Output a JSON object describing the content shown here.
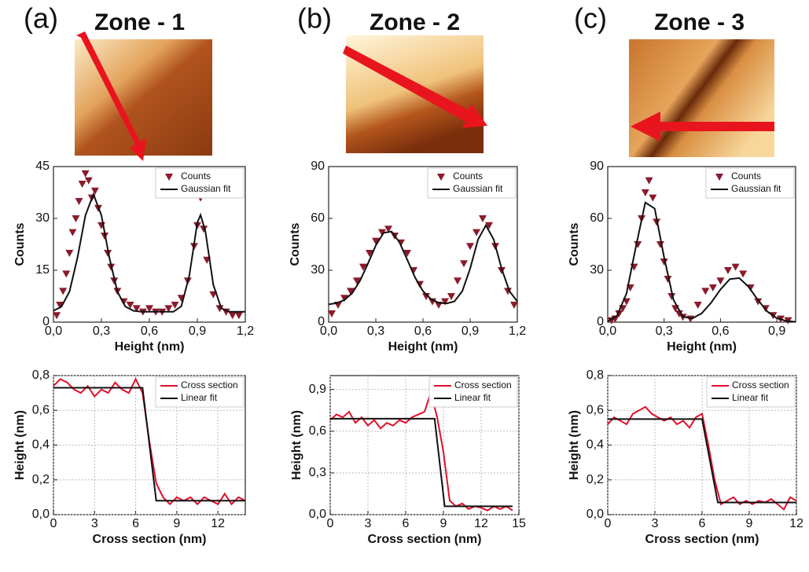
{
  "panels": [
    {
      "label": "(a)",
      "title": "Zone - 1"
    },
    {
      "label": "(b)",
      "title": "Zone - 2"
    },
    {
      "label": "(c)",
      "title": "Zone - 3"
    }
  ],
  "chart_data": [
    {
      "type": "scatter",
      "x_label": "Height (nm)",
      "y_label": "Counts",
      "xlim": [
        0,
        1.2
      ],
      "ylim": [
        0,
        45
      ],
      "xticks": [
        {
          "value": 0,
          "label": "0,0"
        },
        {
          "value": 0.3,
          "label": "0,3"
        },
        {
          "value": 0.6,
          "label": "0,6"
        },
        {
          "value": 0.9,
          "label": "0,9"
        },
        {
          "value": 1.2,
          "label": "1,2"
        }
      ],
      "yticks": [
        0,
        15,
        30,
        45
      ],
      "grid": false,
      "legend": "upper right",
      "series": [
        {
          "name": "Counts",
          "color": "#8b1a2b",
          "mode": "markers",
          "x": [
            0.02,
            0.04,
            0.06,
            0.08,
            0.1,
            0.12,
            0.14,
            0.16,
            0.18,
            0.2,
            0.22,
            0.24,
            0.26,
            0.28,
            0.3,
            0.32,
            0.34,
            0.36,
            0.38,
            0.4,
            0.44,
            0.48,
            0.52,
            0.56,
            0.6,
            0.64,
            0.68,
            0.72,
            0.76,
            0.8,
            0.84,
            0.88,
            0.9,
            0.92,
            0.94,
            0.96,
            1.0,
            1.04,
            1.08,
            1.12,
            1.16
          ],
          "values": [
            2,
            5,
            9,
            14,
            20,
            26,
            30,
            35,
            40,
            43,
            41,
            36,
            38,
            33,
            28,
            25,
            20,
            16,
            12,
            9,
            6,
            5,
            4,
            3,
            4,
            3,
            3,
            4,
            5,
            7,
            12,
            22,
            28,
            36,
            27,
            18,
            8,
            4,
            3,
            2,
            2
          ]
        },
        {
          "name": "Gaussian fit",
          "color": "#111111",
          "mode": "line",
          "x": [
            0,
            0.05,
            0.1,
            0.15,
            0.2,
            0.25,
            0.3,
            0.35,
            0.4,
            0.45,
            0.5,
            0.55,
            0.6,
            0.65,
            0.7,
            0.75,
            0.8,
            0.85,
            0.9,
            0.92,
            0.95,
            1.0,
            1.05,
            1.1,
            1.15,
            1.2
          ],
          "values": [
            3.3,
            4.5,
            8.8,
            18.6,
            30.9,
            37,
            30.9,
            18.6,
            8.8,
            4.5,
            3.3,
            3,
            3,
            3,
            3,
            3,
            4.6,
            13.5,
            28.8,
            31,
            26.4,
            10.8,
            4,
            3,
            3,
            3
          ]
        }
      ]
    },
    {
      "type": "scatter",
      "x_label": "Height (nm)",
      "y_label": "Counts",
      "xlim": [
        0,
        1.2
      ],
      "ylim": [
        0,
        90
      ],
      "xticks": [
        {
          "value": 0,
          "label": "0,0"
        },
        {
          "value": 0.3,
          "label": "0,3"
        },
        {
          "value": 0.6,
          "label": "0,6"
        },
        {
          "value": 0.9,
          "label": "0,9"
        },
        {
          "value": 1.2,
          "label": "1,2"
        }
      ],
      "yticks": [
        0,
        30,
        60,
        90
      ],
      "grid": false,
      "legend": "upper right",
      "series": [
        {
          "name": "Counts",
          "color": "#8b1a2b",
          "mode": "markers",
          "x": [
            0.02,
            0.06,
            0.1,
            0.14,
            0.18,
            0.22,
            0.26,
            0.3,
            0.34,
            0.38,
            0.42,
            0.46,
            0.5,
            0.54,
            0.58,
            0.62,
            0.66,
            0.7,
            0.74,
            0.78,
            0.82,
            0.86,
            0.9,
            0.94,
            0.98,
            1.02,
            1.06,
            1.1,
            1.14,
            1.18
          ],
          "values": [
            5,
            10,
            14,
            18,
            24,
            32,
            40,
            47,
            52,
            54,
            50,
            46,
            40,
            30,
            22,
            15,
            12,
            10,
            12,
            15,
            24,
            34,
            44,
            52,
            60,
            56,
            44,
            30,
            18,
            10
          ]
        },
        {
          "name": "Gaussian fit",
          "color": "#111111",
          "mode": "line",
          "x": [
            0,
            0.05,
            0.1,
            0.15,
            0.2,
            0.25,
            0.3,
            0.35,
            0.4,
            0.45,
            0.5,
            0.55,
            0.6,
            0.65,
            0.7,
            0.75,
            0.8,
            0.85,
            0.9,
            0.95,
            1.0,
            1.05,
            1.1,
            1.15,
            1.2
          ],
          "values": [
            10.3,
            11,
            12.8,
            16.8,
            24,
            33.9,
            44.4,
            51.7,
            52.4,
            46.3,
            36.1,
            25.8,
            18,
            13.4,
            11.2,
            10.8,
            12,
            17.9,
            31,
            47.8,
            56,
            47.8,
            31,
            17.9,
            12
          ]
        }
      ]
    },
    {
      "type": "scatter",
      "x_label": "Height (nm)",
      "y_label": "Counts",
      "xlim": [
        0,
        1.0
      ],
      "ylim": [
        0,
        90
      ],
      "xticks": [
        {
          "value": 0,
          "label": "0,0"
        },
        {
          "value": 0.3,
          "label": "0,3"
        },
        {
          "value": 0.6,
          "label": "0,6"
        },
        {
          "value": 0.9,
          "label": "0,9"
        }
      ],
      "yticks": [
        0,
        30,
        60,
        90
      ],
      "grid": false,
      "legend": "upper right",
      "series": [
        {
          "name": "Counts",
          "color": "#8b1a2b",
          "mode": "markers",
          "x": [
            0.02,
            0.04,
            0.06,
            0.08,
            0.1,
            0.12,
            0.14,
            0.16,
            0.18,
            0.2,
            0.22,
            0.24,
            0.26,
            0.28,
            0.3,
            0.32,
            0.34,
            0.36,
            0.38,
            0.4,
            0.44,
            0.48,
            0.52,
            0.56,
            0.6,
            0.64,
            0.68,
            0.72,
            0.76,
            0.8,
            0.84,
            0.88,
            0.92,
            0.96
          ],
          "values": [
            1,
            2,
            5,
            8,
            12,
            20,
            32,
            45,
            60,
            75,
            82,
            72,
            58,
            45,
            35,
            25,
            15,
            8,
            5,
            3,
            2,
            10,
            18,
            20,
            24,
            30,
            32,
            28,
            20,
            12,
            8,
            4,
            2,
            1
          ]
        },
        {
          "name": "Gaussian fit",
          "color": "#111111",
          "mode": "line",
          "x": [
            0,
            0.05,
            0.1,
            0.15,
            0.2,
            0.25,
            0.3,
            0.35,
            0.4,
            0.45,
            0.5,
            0.55,
            0.6,
            0.65,
            0.7,
            0.75,
            0.8,
            0.85,
            0.9,
            0.95,
            1.0
          ],
          "values": [
            0.5,
            3.8,
            16.6,
            43.7,
            69.2,
            65.7,
            37.5,
            12.9,
            3.2,
            2.1,
            5.1,
            11.2,
            18.9,
            24.9,
            25.5,
            20.4,
            12.7,
            6.1,
            2.3,
            0.7,
            0.2
          ]
        }
      ]
    },
    {
      "type": "line",
      "x_label": "Cross section (nm)",
      "y_label": "Height (nm)",
      "xlim": [
        0,
        14
      ],
      "ylim": [
        0,
        0.8
      ],
      "xticks": [
        0,
        3,
        6,
        9,
        12
      ],
      "yticks": [
        {
          "value": 0,
          "label": "0,0"
        },
        {
          "value": 0.2,
          "label": "0,2"
        },
        {
          "value": 0.4,
          "label": "0,4"
        },
        {
          "value": 0.6,
          "label": "0,6"
        },
        {
          "value": 0.8,
          "label": "0,8"
        }
      ],
      "grid": true,
      "legend": "upper right",
      "series": [
        {
          "name": "Cross section",
          "color": "#e0102a",
          "mode": "line",
          "x": [
            0,
            0.5,
            1,
            1.5,
            2,
            2.5,
            3,
            3.5,
            4,
            4.5,
            5,
            5.5,
            6,
            6.5,
            7,
            7.5,
            8,
            8.5,
            9,
            9.5,
            10,
            10.5,
            11,
            11.5,
            12,
            12.5,
            13,
            13.5,
            14
          ],
          "values": [
            0.74,
            0.78,
            0.76,
            0.72,
            0.7,
            0.74,
            0.68,
            0.72,
            0.7,
            0.76,
            0.72,
            0.7,
            0.78,
            0.7,
            0.42,
            0.18,
            0.1,
            0.06,
            0.1,
            0.08,
            0.1,
            0.06,
            0.1,
            0.08,
            0.06,
            0.12,
            0.06,
            0.1,
            0.08
          ]
        },
        {
          "name": "Linear fit",
          "color": "#111111",
          "mode": "line",
          "x": [
            0,
            6.5,
            7.5,
            14
          ],
          "values": [
            0.73,
            0.73,
            0.08,
            0.08
          ]
        }
      ]
    },
    {
      "type": "line",
      "x_label": "Cross section (nm)",
      "y_label": "Height (nm)",
      "xlim": [
        0,
        15
      ],
      "ylim": [
        0,
        1.0
      ],
      "xticks": [
        0,
        3,
        6,
        9,
        12,
        15
      ],
      "yticks": [
        {
          "value": 0,
          "label": "0,0"
        },
        {
          "value": 0.3,
          "label": "0,3"
        },
        {
          "value": 0.6,
          "label": "0,6"
        },
        {
          "value": 0.9,
          "label": "0,9"
        }
      ],
      "grid": true,
      "legend": "upper right",
      "series": [
        {
          "name": "Cross section",
          "color": "#e0102a",
          "mode": "line",
          "x": [
            0,
            0.5,
            1,
            1.5,
            2,
            2.5,
            3,
            3.5,
            4,
            4.5,
            5,
            5.5,
            6,
            6.5,
            7,
            7.5,
            8,
            8.5,
            9,
            9.5,
            10,
            10.5,
            11,
            11.5,
            12,
            12.5,
            13,
            13.5,
            14,
            14.5
          ],
          "values": [
            0.68,
            0.72,
            0.7,
            0.74,
            0.66,
            0.7,
            0.64,
            0.68,
            0.62,
            0.66,
            0.64,
            0.68,
            0.66,
            0.7,
            0.72,
            0.74,
            0.88,
            0.7,
            0.45,
            0.1,
            0.06,
            0.08,
            0.04,
            0.06,
            0.05,
            0.03,
            0.06,
            0.04,
            0.06,
            0.03
          ]
        },
        {
          "name": "Linear fit",
          "color": "#111111",
          "mode": "line",
          "x": [
            0,
            8.3,
            9.1,
            14.5
          ],
          "values": [
            0.69,
            0.69,
            0.06,
            0.06
          ]
        }
      ]
    },
    {
      "type": "line",
      "x_label": "Cross section (nm)",
      "y_label": "Height (nm)",
      "xlim": [
        0,
        12
      ],
      "ylim": [
        0,
        0.8
      ],
      "xticks": [
        0,
        3,
        6,
        9,
        12
      ],
      "yticks": [
        {
          "value": 0,
          "label": "0,0"
        },
        {
          "value": 0.2,
          "label": "0,2"
        },
        {
          "value": 0.4,
          "label": "0,4"
        },
        {
          "value": 0.6,
          "label": "0,6"
        },
        {
          "value": 0.8,
          "label": "0,8"
        }
      ],
      "grid": true,
      "legend": "upper right",
      "series": [
        {
          "name": "Cross section",
          "color": "#e0102a",
          "mode": "line",
          "x": [
            0,
            0.4,
            0.8,
            1.2,
            1.6,
            2,
            2.4,
            2.8,
            3.2,
            3.6,
            4,
            4.4,
            4.8,
            5.2,
            5.6,
            6,
            6.4,
            6.8,
            7.2,
            7.6,
            8,
            8.4,
            8.8,
            9.2,
            9.6,
            10,
            10.4,
            10.8,
            11.2,
            11.6,
            12
          ],
          "values": [
            0.52,
            0.56,
            0.54,
            0.52,
            0.58,
            0.6,
            0.62,
            0.58,
            0.56,
            0.54,
            0.56,
            0.52,
            0.54,
            0.5,
            0.56,
            0.58,
            0.4,
            0.2,
            0.06,
            0.08,
            0.1,
            0.06,
            0.08,
            0.06,
            0.08,
            0.07,
            0.09,
            0.06,
            0.03,
            0.1,
            0.08
          ]
        },
        {
          "name": "Linear fit",
          "color": "#111111",
          "mode": "line",
          "x": [
            0,
            6,
            7,
            12
          ],
          "values": [
            0.55,
            0.55,
            0.07,
            0.07
          ]
        }
      ]
    }
  ]
}
